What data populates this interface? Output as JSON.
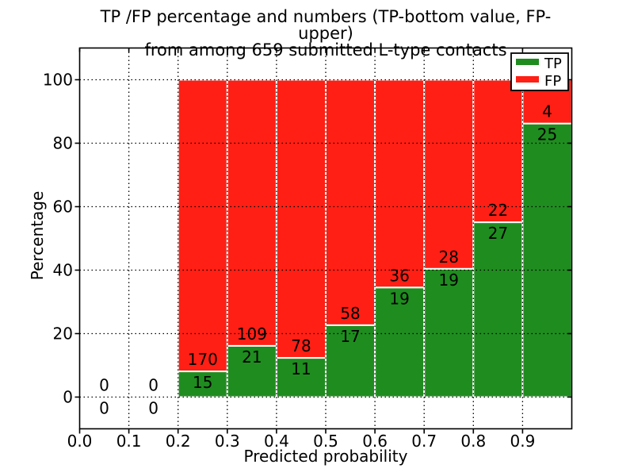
{
  "chart_data": {
    "type": "bar",
    "subtype": "stacked-percentage-bar",
    "title_line1": "TP /FP percentage and numbers (TP-bottom value, FP-upper)",
    "title_line2": "from among 659 submitted L-type contacts",
    "xlabel": "Predicted probability",
    "ylabel": "Percentage",
    "x_tick_labels": [
      "0.0",
      "0.1",
      "0.2",
      "0.3",
      "0.4",
      "0.5",
      "0.6",
      "0.7",
      "0.8",
      "0.9"
    ],
    "x_tick_values": [
      0.0,
      0.1,
      0.2,
      0.3,
      0.4,
      0.5,
      0.6,
      0.7,
      0.8,
      0.9
    ],
    "y_tick_values": [
      0,
      20,
      40,
      60,
      80,
      100
    ],
    "xlim": [
      0.0,
      1.0
    ],
    "ylim": [
      -10,
      110
    ],
    "grid": "dotted",
    "bar_width": 0.1,
    "annotation_note": "FP count above TP count at top of TP segment",
    "bins": [
      {
        "x_start": 0.0,
        "tp": 0,
        "fp": 0
      },
      {
        "x_start": 0.1,
        "tp": 0,
        "fp": 0
      },
      {
        "x_start": 0.2,
        "tp": 15,
        "fp": 170
      },
      {
        "x_start": 0.3,
        "tp": 21,
        "fp": 109
      },
      {
        "x_start": 0.4,
        "tp": 11,
        "fp": 78
      },
      {
        "x_start": 0.5,
        "tp": 17,
        "fp": 58
      },
      {
        "x_start": 0.6,
        "tp": 19,
        "fp": 36
      },
      {
        "x_start": 0.7,
        "tp": 19,
        "fp": 28
      },
      {
        "x_start": 0.8,
        "tp": 27,
        "fp": 22
      },
      {
        "x_start": 0.9,
        "tp": 25,
        "fp": 4
      }
    ],
    "legend": {
      "position": "upper-right",
      "entries": [
        {
          "label": "TP",
          "color": "#1f8c1f"
        },
        {
          "label": "FP",
          "color": "#ff1f14"
        }
      ]
    },
    "colors": {
      "tp": "#1f8c1f",
      "fp": "#ff1f14",
      "bar_edge": "#ffffff",
      "grid": "#000000",
      "spine": "#000000",
      "text": "#000000",
      "background": "#ffffff"
    }
  }
}
